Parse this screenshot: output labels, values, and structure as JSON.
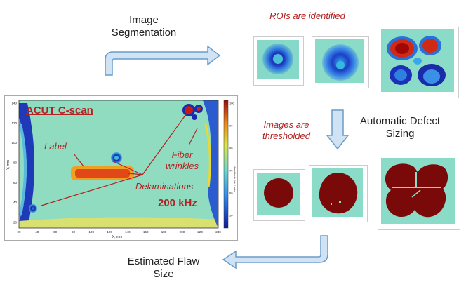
{
  "labels": {
    "segmentation": "Image\nSegmentation",
    "rois": "ROIs are identified",
    "thresholded": "Images are\nthresholded",
    "sizing": "Automatic Defect\nSizing",
    "estimated": "Estimated Flaw\nSize"
  },
  "cscan": {
    "title": "ACUT C-scan",
    "label_text": "Label",
    "fiber_text": "Fiber\nwrinkles",
    "delam_text": "Delaminations",
    "freq_text": "200 kHz",
    "xlabel": "X, mm",
    "ylabel": "Y, mm",
    "colorbar_label": "Amplitude Arb. Units",
    "xticks": [
      "20",
      "40",
      "60",
      "80",
      "100",
      "120",
      "140",
      "160",
      "180",
      "200",
      "220",
      "240"
    ],
    "yticks": [
      "140",
      "120",
      "100",
      "80",
      "60",
      "40",
      "20"
    ],
    "cbticks": [
      "100",
      "90",
      "80",
      "70",
      "60",
      "50"
    ]
  },
  "colors": {
    "accent_red": "#b22222",
    "arrow_fill": "#cfe3f5",
    "arrow_stroke": "#6a9cc8",
    "defect_red": "#7a0a0a"
  }
}
